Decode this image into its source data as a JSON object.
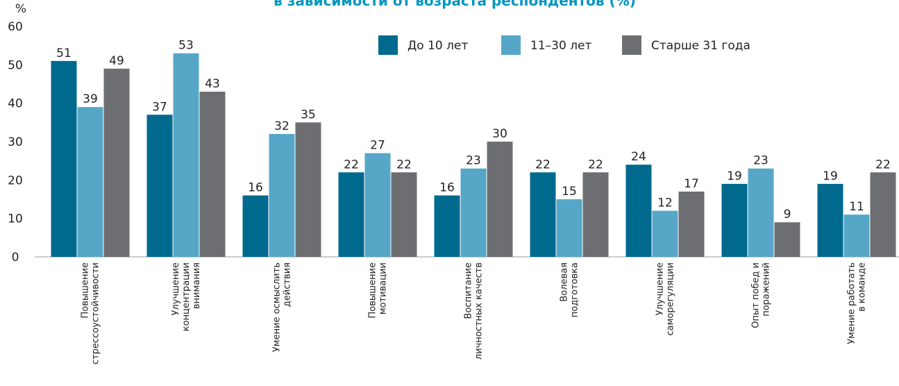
{
  "chart_data": {
    "type": "bar",
    "title": "в зависимости от возраста респондентов (%)",
    "y_label": "%",
    "categories": [
      [
        "Повышение",
        "стрессоустойчивости"
      ],
      [
        "Улучшение",
        "концентрации",
        "внимания"
      ],
      [
        "Умение осмыслить",
        "действия"
      ],
      [
        "Повышение",
        "мотивации"
      ],
      [
        "Воспитание",
        "личностных качеств"
      ],
      [
        "Волевая",
        "подготовка"
      ],
      [
        "Улучшение",
        "саморегуляции"
      ],
      [
        "Опыт побед и",
        "поражений"
      ],
      [
        "Умение работать",
        "в команде"
      ]
    ],
    "series": [
      {
        "name": "До 10 лет",
        "color": "#006a8e",
        "values": [
          51,
          37,
          16,
          22,
          16,
          22,
          24,
          19,
          19
        ]
      },
      {
        "name": "11–30 лет",
        "color": "#56a7c7",
        "values": [
          39,
          53,
          32,
          27,
          23,
          15,
          12,
          23,
          11
        ]
      },
      {
        "name": "Старше 31 года",
        "color": "#6d6e71",
        "values": [
          49,
          43,
          35,
          22,
          30,
          22,
          17,
          9,
          22
        ]
      }
    ],
    "ylim": [
      0,
      60
    ],
    "yticks": [
      0,
      10,
      20,
      30,
      40,
      50,
      60
    ],
    "grid": false
  }
}
